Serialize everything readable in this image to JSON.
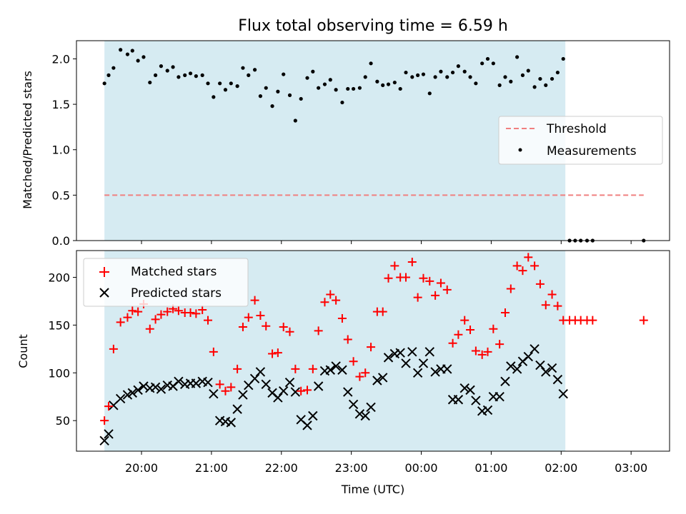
{
  "figure": {
    "title": "Flux total observing time = 6.59 h",
    "xlabel": "Time (UTC)",
    "xticks": [
      {
        "value": 20.0,
        "label": "20:00"
      },
      {
        "value": 21.0,
        "label": "21:00"
      },
      {
        "value": 22.0,
        "label": "22:00"
      },
      {
        "value": 23.0,
        "label": "23:00"
      },
      {
        "value": 24.0,
        "label": "00:00"
      },
      {
        "value": 25.0,
        "label": "01:00"
      },
      {
        "value": 26.0,
        "label": "02:00"
      },
      {
        "value": 27.0,
        "label": "03:00"
      }
    ],
    "xlim": [
      19.07,
      27.55
    ],
    "shaded_interval": [
      19.47,
      26.06
    ],
    "colors": {
      "shade": "#add8e6",
      "threshold": "#f08080",
      "matched": "#ff0000",
      "predicted": "#000000",
      "measurements": "#000000"
    }
  },
  "chart_data": [
    {
      "type": "scatter",
      "ylabel": "Matched/Predicted stars",
      "ylim": [
        0.0,
        2.2
      ],
      "yticks": [
        "0.0",
        "0.5",
        "1.0",
        "1.5",
        "2.0"
      ],
      "legend": {
        "placement": "center-right",
        "threshold_label": "Threshold",
        "measurements_label": "Measurements"
      },
      "threshold": {
        "y": 0.5,
        "x_start": 19.47,
        "x_end": 27.18
      },
      "measurements": {
        "x": [
          19.47,
          19.53,
          19.6,
          19.7,
          19.8,
          19.87,
          19.95,
          20.03,
          20.12,
          20.2,
          20.28,
          20.37,
          20.45,
          20.53,
          20.62,
          20.7,
          20.78,
          20.87,
          20.95,
          21.03,
          21.12,
          21.2,
          21.28,
          21.37,
          21.45,
          21.53,
          21.62,
          21.7,
          21.78,
          21.87,
          21.95,
          22.03,
          22.12,
          22.2,
          22.28,
          22.37,
          22.45,
          22.53,
          22.62,
          22.7,
          22.78,
          22.87,
          22.95,
          23.03,
          23.12,
          23.2,
          23.28,
          23.37,
          23.45,
          23.53,
          23.62,
          23.7,
          23.78,
          23.87,
          23.95,
          24.03,
          24.12,
          24.2,
          24.28,
          24.37,
          24.45,
          24.53,
          24.62,
          24.7,
          24.78,
          24.87,
          24.95,
          25.03,
          25.12,
          25.2,
          25.28,
          25.37,
          25.45,
          25.53,
          25.62,
          25.7,
          25.78,
          25.87,
          25.95,
          26.03,
          26.12,
          26.2,
          26.28,
          26.37,
          26.45,
          27.18
        ],
        "y": [
          1.73,
          1.82,
          1.9,
          2.1,
          2.05,
          2.09,
          1.98,
          2.02,
          1.74,
          1.82,
          1.92,
          1.87,
          1.91,
          1.8,
          1.82,
          1.84,
          1.81,
          1.82,
          1.73,
          1.58,
          1.73,
          1.66,
          1.73,
          1.7,
          1.9,
          1.82,
          1.88,
          1.59,
          1.68,
          1.48,
          1.64,
          1.83,
          1.6,
          1.32,
          1.56,
          1.79,
          1.86,
          1.68,
          1.72,
          1.77,
          1.66,
          1.52,
          1.67,
          1.67,
          1.68,
          1.8,
          1.95,
          1.75,
          1.71,
          1.72,
          1.74,
          1.67,
          1.85,
          1.8,
          1.82,
          1.83,
          1.62,
          1.8,
          1.86,
          1.8,
          1.85,
          1.92,
          1.86,
          1.8,
          1.73,
          1.95,
          2.0,
          1.95,
          1.71,
          1.8,
          1.75,
          2.02,
          1.82,
          1.87,
          1.69,
          1.78,
          1.71,
          1.78,
          1.85,
          2.0,
          0.0,
          0.0,
          0.0,
          0.0,
          0.0,
          0.0
        ]
      }
    },
    {
      "type": "scatter",
      "ylabel": "Count",
      "ylim": [
        18,
        228
      ],
      "yticks": [
        "50",
        "100",
        "150",
        "200"
      ],
      "legend": {
        "placement": "upper-left"
      },
      "series": [
        {
          "name": "Matched stars",
          "marker": "+",
          "x": [
            19.47,
            19.53,
            19.6,
            19.7,
            19.8,
            19.87,
            19.95,
            20.03,
            20.12,
            20.2,
            20.28,
            20.37,
            20.45,
            20.53,
            20.62,
            20.7,
            20.78,
            20.87,
            20.95,
            21.03,
            21.12,
            21.2,
            21.28,
            21.37,
            21.45,
            21.53,
            21.62,
            21.7,
            21.78,
            21.87,
            21.95,
            22.03,
            22.12,
            22.2,
            22.28,
            22.37,
            22.45,
            22.53,
            22.62,
            22.7,
            22.78,
            22.87,
            22.95,
            23.03,
            23.12,
            23.2,
            23.28,
            23.37,
            23.45,
            23.53,
            23.62,
            23.7,
            23.78,
            23.87,
            23.95,
            24.03,
            24.12,
            24.2,
            24.28,
            24.37,
            24.45,
            24.53,
            24.62,
            24.7,
            24.78,
            24.87,
            24.95,
            25.03,
            25.12,
            25.2,
            25.28,
            25.37,
            25.45,
            25.53,
            25.62,
            25.7,
            25.78,
            25.87,
            25.95,
            26.03,
            26.12,
            26.2,
            26.28,
            26.37,
            26.45,
            27.18
          ],
          "y": [
            50,
            65,
            125,
            153,
            158,
            165,
            164,
            172,
            146,
            156,
            161,
            164,
            167,
            165,
            163,
            163,
            162,
            166,
            155,
            122,
            88,
            81,
            85,
            104,
            148,
            158,
            176,
            160,
            149,
            120,
            121,
            148,
            143,
            104,
            81,
            82,
            104,
            144,
            174,
            182,
            176,
            157,
            135,
            112,
            96,
            100,
            127,
            164,
            164,
            199,
            212,
            200,
            200,
            216,
            179,
            199,
            196,
            181,
            194,
            187,
            131,
            140,
            155,
            145,
            123,
            119,
            122,
            146,
            130,
            163,
            188,
            212,
            207,
            221,
            212,
            193,
            171,
            182,
            170,
            155,
            155,
            155,
            155,
            155,
            155,
            155
          ]
        },
        {
          "name": "Predicted stars",
          "marker": "x",
          "x": [
            19.47,
            19.53,
            19.6,
            19.7,
            19.8,
            19.87,
            19.95,
            20.03,
            20.12,
            20.2,
            20.28,
            20.37,
            20.45,
            20.53,
            20.62,
            20.7,
            20.78,
            20.87,
            20.95,
            21.03,
            21.12,
            21.2,
            21.28,
            21.37,
            21.45,
            21.53,
            21.62,
            21.7,
            21.78,
            21.87,
            21.95,
            22.03,
            22.12,
            22.2,
            22.28,
            22.37,
            22.45,
            22.53,
            22.62,
            22.7,
            22.78,
            22.87,
            22.95,
            23.03,
            23.12,
            23.2,
            23.28,
            23.37,
            23.45,
            23.53,
            23.62,
            23.7,
            23.78,
            23.87,
            23.95,
            24.03,
            24.12,
            24.2,
            24.28,
            24.37,
            24.45,
            24.53,
            24.62,
            24.7,
            24.78,
            24.87,
            24.95,
            25.03,
            25.12,
            25.2,
            25.28,
            25.37,
            25.45,
            25.53,
            25.62,
            25.7,
            25.78,
            25.87,
            25.95,
            26.03
          ],
          "y": [
            29,
            36,
            66,
            73,
            77,
            79,
            82,
            86,
            84,
            85,
            83,
            87,
            86,
            91,
            88,
            89,
            89,
            91,
            90,
            78,
            50,
            49,
            48,
            62,
            77,
            87,
            94,
            101,
            88,
            79,
            74,
            81,
            90,
            80,
            51,
            45,
            55,
            86,
            102,
            103,
            107,
            103,
            80,
            67,
            57,
            55,
            64,
            92,
            95,
            116,
            120,
            121,
            110,
            122,
            100,
            110,
            122,
            101,
            104,
            104,
            72,
            72,
            84,
            82,
            71,
            60,
            61,
            75,
            75,
            91,
            107,
            104,
            112,
            117,
            125,
            108,
            101,
            105,
            93,
            78
          ]
        }
      ]
    }
  ]
}
